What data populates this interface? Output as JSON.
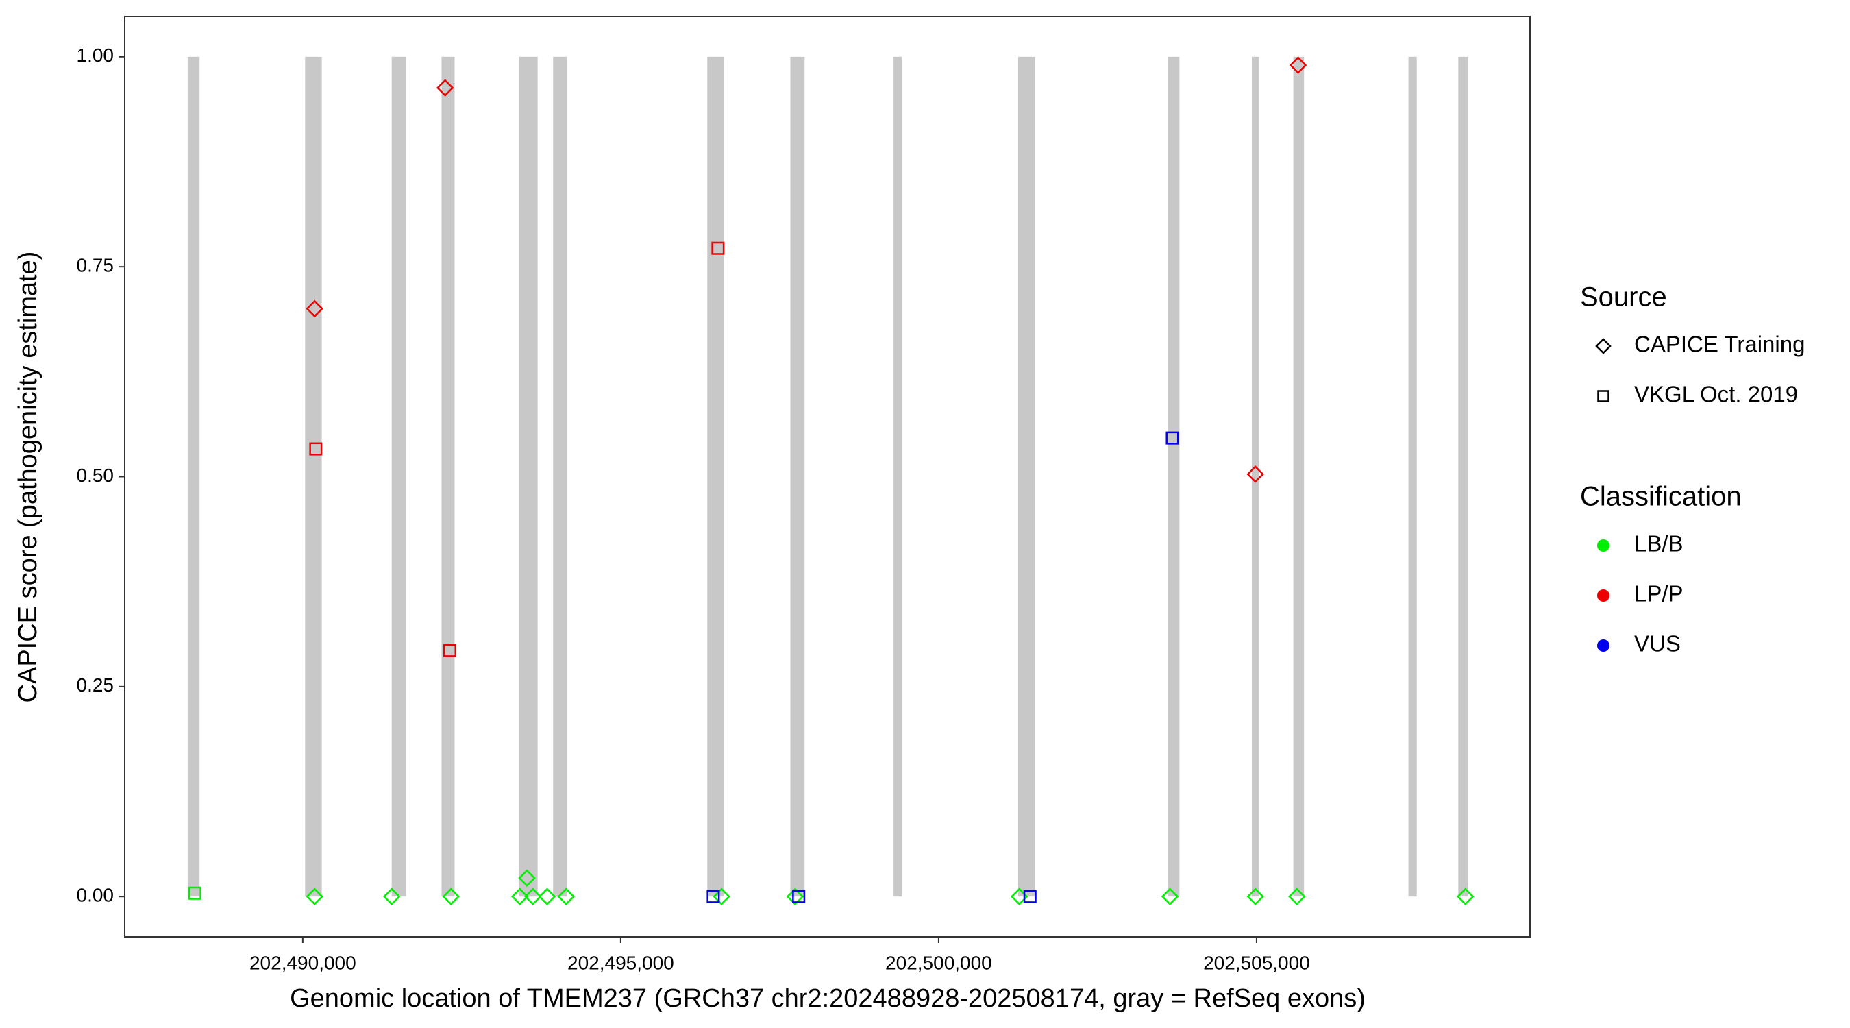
{
  "chart_data": {
    "type": "scatter",
    "xlabel": "Genomic location of TMEM237 (GRCh37 chr2:202488928-202508174, gray = RefSeq exons)",
    "ylabel": "CAPICE score (pathogenicity estimate)",
    "xlim": [
      202487200,
      202509300
    ],
    "ylim": [
      -0.048,
      1.048
    ],
    "xticks": [
      {
        "value": 202490000,
        "label": "202,490,000"
      },
      {
        "value": 202495000,
        "label": "202,495,000"
      },
      {
        "value": 202500000,
        "label": "202,500,000"
      },
      {
        "value": 202505000,
        "label": "202,505,000"
      }
    ],
    "yticks": [
      {
        "value": 0,
        "label": "0.00"
      },
      {
        "value": 0.25,
        "label": "0.25"
      },
      {
        "value": 0.5,
        "label": "0.50"
      },
      {
        "value": 0.75,
        "label": "0.75"
      },
      {
        "value": 1,
        "label": "1.00"
      }
    ],
    "exon_color": "#c8c8c8",
    "exons": [
      [
        202488190,
        202488377
      ],
      [
        202490037,
        202490299
      ],
      [
        202491399,
        202491623
      ],
      [
        202492183,
        202492388
      ],
      [
        202493396,
        202493694
      ],
      [
        202493937,
        202494160
      ],
      [
        202496362,
        202496623
      ],
      [
        202497668,
        202497892
      ],
      [
        202499291,
        202499422
      ],
      [
        202501250,
        202501511
      ],
      [
        202503601,
        202503787
      ],
      [
        202504925,
        202505037
      ],
      [
        202505578,
        202505746
      ],
      [
        202507388,
        202507519
      ],
      [
        202508172,
        202508321
      ]
    ],
    "legend_source_title": "Source",
    "sources": [
      {
        "name": "CAPICE Training",
        "shape": "diamond"
      },
      {
        "name": "VKGL Oct. 2019",
        "shape": "square"
      }
    ],
    "legend_class_title": "Classification",
    "classifications": [
      {
        "name": "LB/B",
        "color": "#00ee00"
      },
      {
        "name": "LP/P",
        "color": "#ee0000"
      },
      {
        "name": "VUS",
        "color": "#0000ee"
      }
    ],
    "series": [
      {
        "source": 0,
        "classification": 0,
        "x": [
          202490187,
          202491399,
          202492332,
          202493414,
          202493526,
          202493619,
          202493843,
          202494142,
          202496586,
          202497743,
          202501269,
          202503638,
          202504981,
          202505634,
          202508284
        ],
        "values": [
          0,
          0,
          0,
          0,
          0.022,
          0,
          0,
          0,
          0,
          0,
          0,
          0,
          0,
          0,
          0
        ]
      },
      {
        "source": 0,
        "classification": 1,
        "x": [
          202490187,
          202492239,
          202504981,
          202505653
        ],
        "values": [
          0.7,
          0.963,
          0.503,
          0.99
        ]
      },
      {
        "source": 1,
        "classification": 0,
        "x": [
          202488302
        ],
        "values": [
          0.004
        ]
      },
      {
        "source": 1,
        "classification": 1,
        "x": [
          202490205,
          202492313,
          202496530
        ],
        "values": [
          0.533,
          0.293,
          0.772
        ]
      },
      {
        "source": 1,
        "classification": 2,
        "x": [
          202496455,
          202497799,
          202501437,
          202503675
        ],
        "values": [
          0,
          0,
          0,
          0.546
        ]
      }
    ]
  }
}
